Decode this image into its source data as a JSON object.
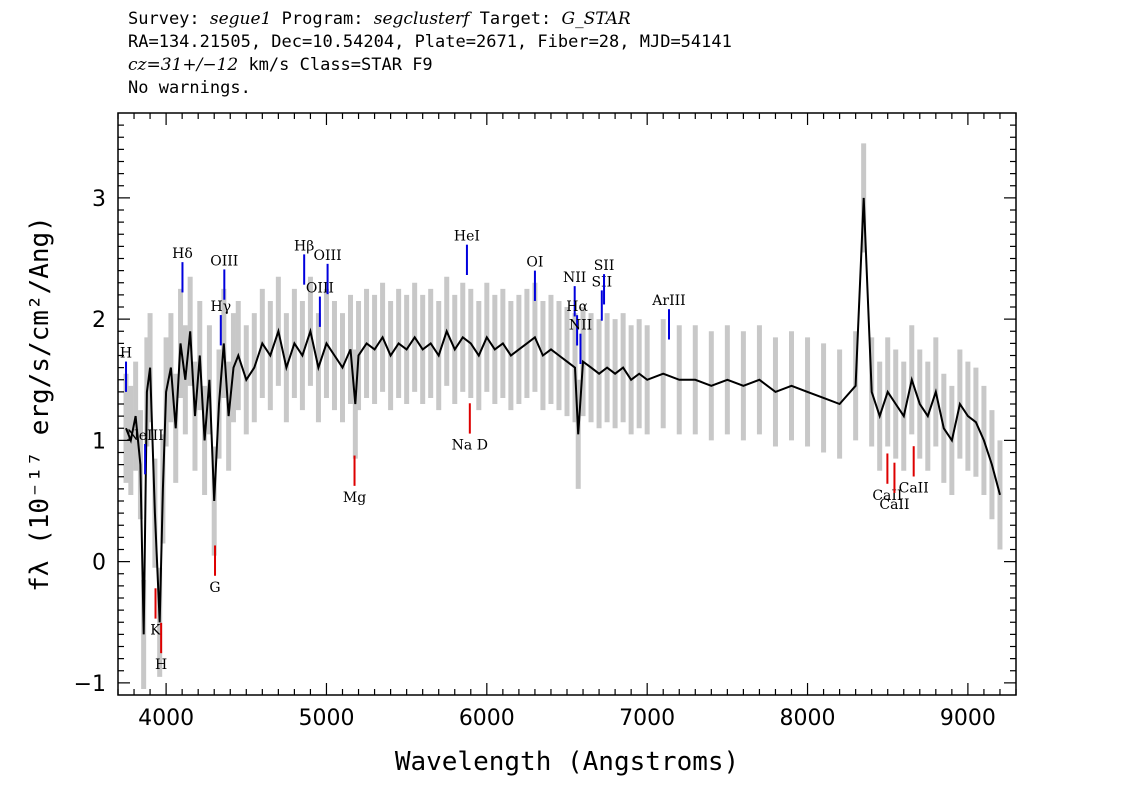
{
  "header": {
    "line1": {
      "survey_label": "Survey: ",
      "survey": "segue1",
      "program_label": " Program: ",
      "program": "segclusterf",
      "target_label": " Target: ",
      "target": "G_STAR"
    },
    "line2": "RA=134.21505, Dec=10.54204, Plate=2671, Fiber=28, MJD=54141",
    "line3": {
      "cz": "cz=31+/−12",
      "rest": " km/s Class=STAR F9"
    },
    "line4": "No warnings."
  },
  "chart_data": {
    "type": "line",
    "title": "",
    "xlabel": "Wavelength (Angstroms)",
    "ylabel": "fλ (10⁻¹⁷ erg/s/cm²/Ang)",
    "xlim": [
      3700,
      9300
    ],
    "ylim": [
      -1.1,
      3.7
    ],
    "x_ticks": [
      4000,
      5000,
      6000,
      7000,
      8000,
      9000
    ],
    "y_ticks": [
      -1,
      0,
      1,
      2,
      3
    ],
    "colors": {
      "flux": "#000000",
      "error_band": "#c8c8c8",
      "emission": "#0000dd",
      "absorption": "#dd0000"
    },
    "series": [
      {
        "name": "flux",
        "x": [
          3750,
          3780,
          3810,
          3840,
          3860,
          3880,
          3900,
          3930,
          3960,
          3980,
          4000,
          4030,
          4060,
          4090,
          4120,
          4150,
          4180,
          4210,
          4240,
          4270,
          4300,
          4330,
          4360,
          4390,
          4420,
          4450,
          4500,
          4550,
          4600,
          4650,
          4700,
          4750,
          4800,
          4850,
          4900,
          4950,
          5000,
          5050,
          5100,
          5150,
          5180,
          5200,
          5250,
          5300,
          5350,
          5400,
          5450,
          5500,
          5550,
          5600,
          5650,
          5700,
          5750,
          5800,
          5850,
          5900,
          5950,
          6000,
          6050,
          6100,
          6150,
          6200,
          6250,
          6300,
          6350,
          6400,
          6450,
          6500,
          6550,
          6570,
          6600,
          6650,
          6700,
          6750,
          6800,
          6850,
          6900,
          6950,
          7000,
          7100,
          7200,
          7300,
          7400,
          7500,
          7600,
          7700,
          7800,
          7900,
          8000,
          8100,
          8200,
          8300,
          8350,
          8400,
          8450,
          8500,
          8550,
          8600,
          8650,
          8700,
          8750,
          8800,
          8850,
          8900,
          8950,
          9000,
          9050,
          9100,
          9150,
          9200
        ],
        "y": [
          1.1,
          1.0,
          1.2,
          0.8,
          -0.6,
          1.4,
          1.6,
          0.4,
          -0.5,
          0.6,
          1.4,
          1.6,
          1.1,
          1.8,
          1.5,
          1.9,
          1.2,
          1.7,
          1.0,
          1.5,
          0.5,
          1.3,
          1.8,
          1.2,
          1.6,
          1.7,
          1.5,
          1.6,
          1.8,
          1.7,
          1.9,
          1.6,
          1.8,
          1.7,
          1.9,
          1.6,
          1.8,
          1.7,
          1.6,
          1.75,
          1.3,
          1.7,
          1.8,
          1.75,
          1.85,
          1.7,
          1.8,
          1.75,
          1.85,
          1.75,
          1.8,
          1.7,
          1.9,
          1.75,
          1.85,
          1.8,
          1.7,
          1.85,
          1.75,
          1.8,
          1.7,
          1.75,
          1.8,
          1.85,
          1.7,
          1.75,
          1.7,
          1.65,
          1.6,
          1.05,
          1.65,
          1.6,
          1.55,
          1.6,
          1.55,
          1.6,
          1.5,
          1.55,
          1.5,
          1.55,
          1.5,
          1.5,
          1.45,
          1.5,
          1.45,
          1.5,
          1.4,
          1.45,
          1.4,
          1.35,
          1.3,
          1.45,
          3.0,
          1.4,
          1.2,
          1.4,
          1.3,
          1.2,
          1.5,
          1.3,
          1.2,
          1.4,
          1.1,
          1.0,
          1.3,
          1.2,
          1.15,
          1.0,
          0.8,
          0.55
        ]
      }
    ],
    "emission_lines": [
      {
        "label": "H",
        "x": 3750
      },
      {
        "label": "NeIII",
        "x": 3869
      },
      {
        "label": "Hδ",
        "x": 4102
      },
      {
        "label": "Hγ",
        "x": 4341
      },
      {
        "label": "OIII",
        "x": 4363
      },
      {
        "label": "Hβ",
        "x": 4861
      },
      {
        "label": "OIII",
        "x": 4959
      },
      {
        "label": "OIII",
        "x": 5007
      },
      {
        "label": "HeI",
        "x": 5876
      },
      {
        "label": "OI",
        "x": 6300
      },
      {
        "label": "NII",
        "x": 6548
      },
      {
        "label": "Hα",
        "x": 6563
      },
      {
        "label": "NII",
        "x": 6584
      },
      {
        "label": "SII",
        "x": 6717
      },
      {
        "label": "SII",
        "x": 6731
      },
      {
        "label": "ArIII",
        "x": 7136
      }
    ],
    "absorption_lines": [
      {
        "label": "K",
        "x": 3934
      },
      {
        "label": "H",
        "x": 3969
      },
      {
        "label": "G",
        "x": 4305
      },
      {
        "label": "Mg",
        "x": 5175
      },
      {
        "label": "Na D",
        "x": 5894
      },
      {
        "label": "CaII",
        "x": 8498
      },
      {
        "label": "CaII",
        "x": 8542
      },
      {
        "label": "CaII",
        "x": 8662
      }
    ]
  }
}
